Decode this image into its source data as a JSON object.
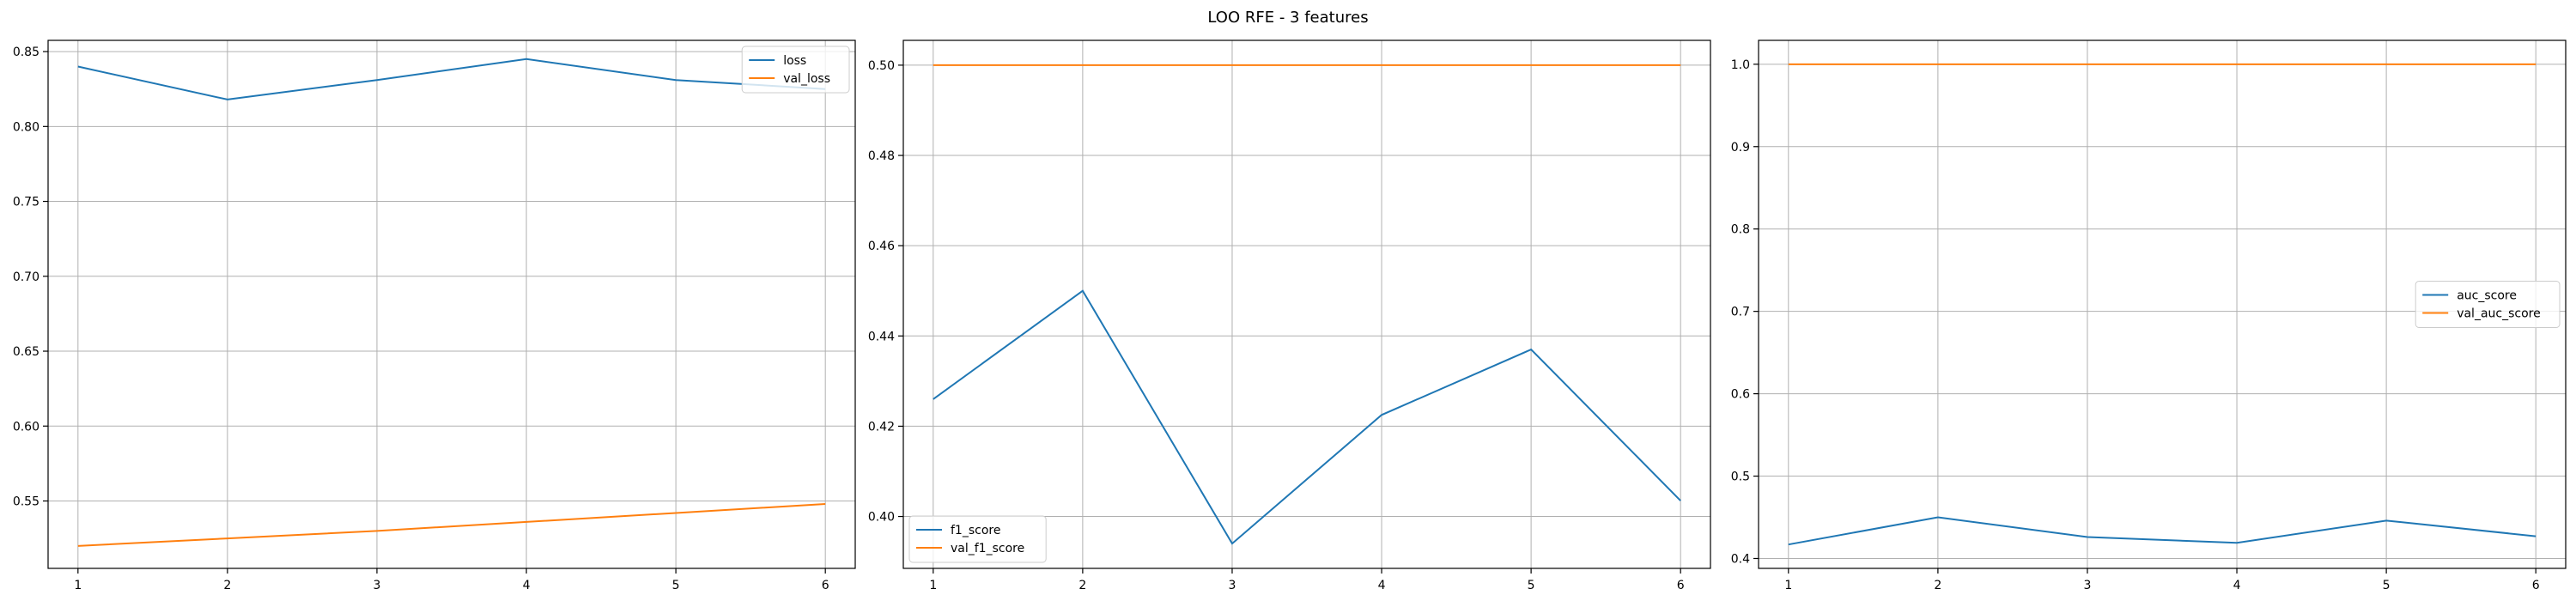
{
  "figure": {
    "suptitle": "LOO RFE - 3 features"
  },
  "chart_data": [
    {
      "type": "line",
      "title": "",
      "xlabel": "",
      "ylabel": "",
      "xlim": [
        0.8,
        6.2
      ],
      "ylim": [
        0.505,
        0.8575
      ],
      "x": [
        1,
        2,
        3,
        4,
        5,
        6
      ],
      "xticks": [
        1,
        2,
        3,
        4,
        5,
        6
      ],
      "yticks": [
        0.55,
        0.6,
        0.65,
        0.7,
        0.75,
        0.8,
        0.85
      ],
      "ytick_labels": [
        "0.55",
        "0.60",
        "0.65",
        "0.70",
        "0.75",
        "0.80",
        "0.85"
      ],
      "grid": true,
      "legend_position": "upper right",
      "series": [
        {
          "name": "loss",
          "color": "#1f77b4",
          "values": [
            0.84,
            0.818,
            0.831,
            0.845,
            0.831,
            0.825
          ]
        },
        {
          "name": "val_loss",
          "color": "#ff7f0e",
          "values": [
            0.52,
            0.525,
            0.53,
            0.536,
            0.542,
            0.548
          ]
        }
      ]
    },
    {
      "type": "line",
      "title": "",
      "xlabel": "",
      "ylabel": "",
      "xlim": [
        0.8,
        6.2
      ],
      "ylim": [
        0.3885,
        0.5055
      ],
      "x": [
        1,
        2,
        3,
        4,
        5,
        6
      ],
      "xticks": [
        1,
        2,
        3,
        4,
        5,
        6
      ],
      "yticks": [
        0.4,
        0.42,
        0.44,
        0.46,
        0.48,
        0.5
      ],
      "ytick_labels": [
        "0.40",
        "0.42",
        "0.44",
        "0.46",
        "0.48",
        "0.50"
      ],
      "grid": true,
      "legend_position": "lower left",
      "series": [
        {
          "name": "f1_score",
          "color": "#1f77b4",
          "values": [
            0.426,
            0.45,
            0.394,
            0.4225,
            0.437,
            0.4035
          ]
        },
        {
          "name": "val_f1_score",
          "color": "#ff7f0e",
          "values": [
            0.5,
            0.5,
            0.5,
            0.5,
            0.5,
            0.5
          ]
        }
      ]
    },
    {
      "type": "line",
      "title": "",
      "xlabel": "",
      "ylabel": "",
      "xlim": [
        0.8,
        6.2
      ],
      "ylim": [
        0.388,
        1.029
      ],
      "x": [
        1,
        2,
        3,
        4,
        5,
        6
      ],
      "xticks": [
        1,
        2,
        3,
        4,
        5,
        6
      ],
      "yticks": [
        0.4,
        0.5,
        0.6,
        0.7,
        0.8,
        0.9,
        1.0
      ],
      "ytick_labels": [
        "0.4",
        "0.5",
        "0.6",
        "0.7",
        "0.8",
        "0.9",
        "1.0"
      ],
      "grid": true,
      "legend_position": "center right",
      "series": [
        {
          "name": "auc_score",
          "color": "#1f77b4",
          "values": [
            0.417,
            0.45,
            0.426,
            0.419,
            0.446,
            0.427
          ]
        },
        {
          "name": "val_auc_score",
          "color": "#ff7f0e",
          "values": [
            1.0,
            1.0,
            1.0,
            1.0,
            1.0,
            1.0
          ]
        }
      ]
    }
  ]
}
